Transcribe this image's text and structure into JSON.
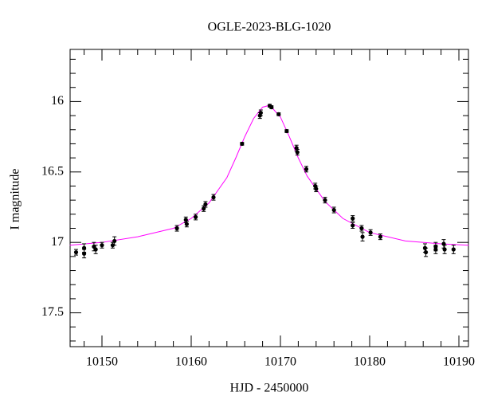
{
  "chart_data": {
    "type": "scatter",
    "title": "OGLE-2023-BLG-1020",
    "xlabel": "HJD - 2450000",
    "ylabel": "I magnitude",
    "x": [
      10147.1,
      10148.0,
      10148.0,
      10149.1,
      10149.3,
      10150.0,
      10151.2,
      10151.4,
      10158.4,
      10159.4,
      10159.5,
      10160.5,
      10161.4,
      10161.6,
      10162.5,
      10165.7,
      10167.7,
      10167.8,
      10168.8,
      10169.0,
      10169.8,
      10170.7,
      10171.8,
      10171.9,
      10172.9,
      10173.9,
      10174.0,
      10175.0,
      10176.0,
      10178.1,
      10178.1,
      10179.1,
      10179.2,
      10180.1,
      10181.2,
      10186.2,
      10186.3,
      10187.4,
      10187.4,
      10188.3,
      10188.4,
      10189.4
    ],
    "values": [
      17.07,
      17.04,
      17.08,
      17.03,
      17.05,
      17.02,
      17.02,
      16.99,
      16.9,
      16.84,
      16.87,
      16.82,
      16.76,
      16.73,
      16.68,
      16.3,
      16.1,
      16.08,
      16.03,
      16.04,
      16.09,
      16.21,
      16.33,
      16.36,
      16.48,
      16.6,
      16.62,
      16.7,
      16.77,
      16.88,
      16.83,
      16.9,
      16.96,
      16.93,
      16.96,
      17.04,
      17.07,
      17.03,
      17.05,
      17.01,
      17.05,
      17.05
    ],
    "errors": [
      0.02,
      0.03,
      0.03,
      0.03,
      0.03,
      0.02,
      0.02,
      0.03,
      0.02,
      0.02,
      0.02,
      0.02,
      0.02,
      0.02,
      0.02,
      0.01,
      0.02,
      0.02,
      0.01,
      0.01,
      0.01,
      0.01,
      0.02,
      0.02,
      0.02,
      0.02,
      0.02,
      0.02,
      0.02,
      0.02,
      0.02,
      0.02,
      0.03,
      0.02,
      0.02,
      0.03,
      0.03,
      0.03,
      0.03,
      0.03,
      0.03,
      0.03
    ],
    "color": "#000000",
    "model": {
      "color": "#ff00ff",
      "x": [
        10146.4,
        10150,
        10154,
        10158,
        10160,
        10162,
        10164,
        10165,
        10166,
        10167,
        10168,
        10168.6,
        10169,
        10170,
        10171,
        10172,
        10173,
        10175,
        10177,
        10180,
        10184,
        10188,
        10191.1
      ],
      "values": [
        17.02,
        17.0,
        16.96,
        16.9,
        16.83,
        16.72,
        16.54,
        16.4,
        16.25,
        16.12,
        16.04,
        16.03,
        16.04,
        16.11,
        16.25,
        16.4,
        16.53,
        16.71,
        16.83,
        16.93,
        16.99,
        17.01,
        17.02
      ]
    },
    "xlim": [
      10146.43,
      10191.07
    ],
    "ylim": [
      17.74,
      15.63
    ],
    "xticks": [
      10150,
      10160,
      10170,
      10180,
      10190
    ],
    "yticks": [
      16,
      16.5,
      17,
      17.5
    ],
    "xminorticks": [
      10148,
      10152,
      10154,
      10156,
      10158,
      10162,
      10164,
      10166,
      10168,
      10172,
      10174,
      10176,
      10178,
      10182,
      10184,
      10186,
      10188
    ],
    "yminorticks": [
      15.7,
      15.8,
      15.9,
      16.1,
      16.2,
      16.3,
      16.4,
      16.6,
      16.7,
      16.8,
      16.9,
      17.1,
      17.2,
      17.3,
      17.4,
      17.6,
      17.7
    ]
  }
}
